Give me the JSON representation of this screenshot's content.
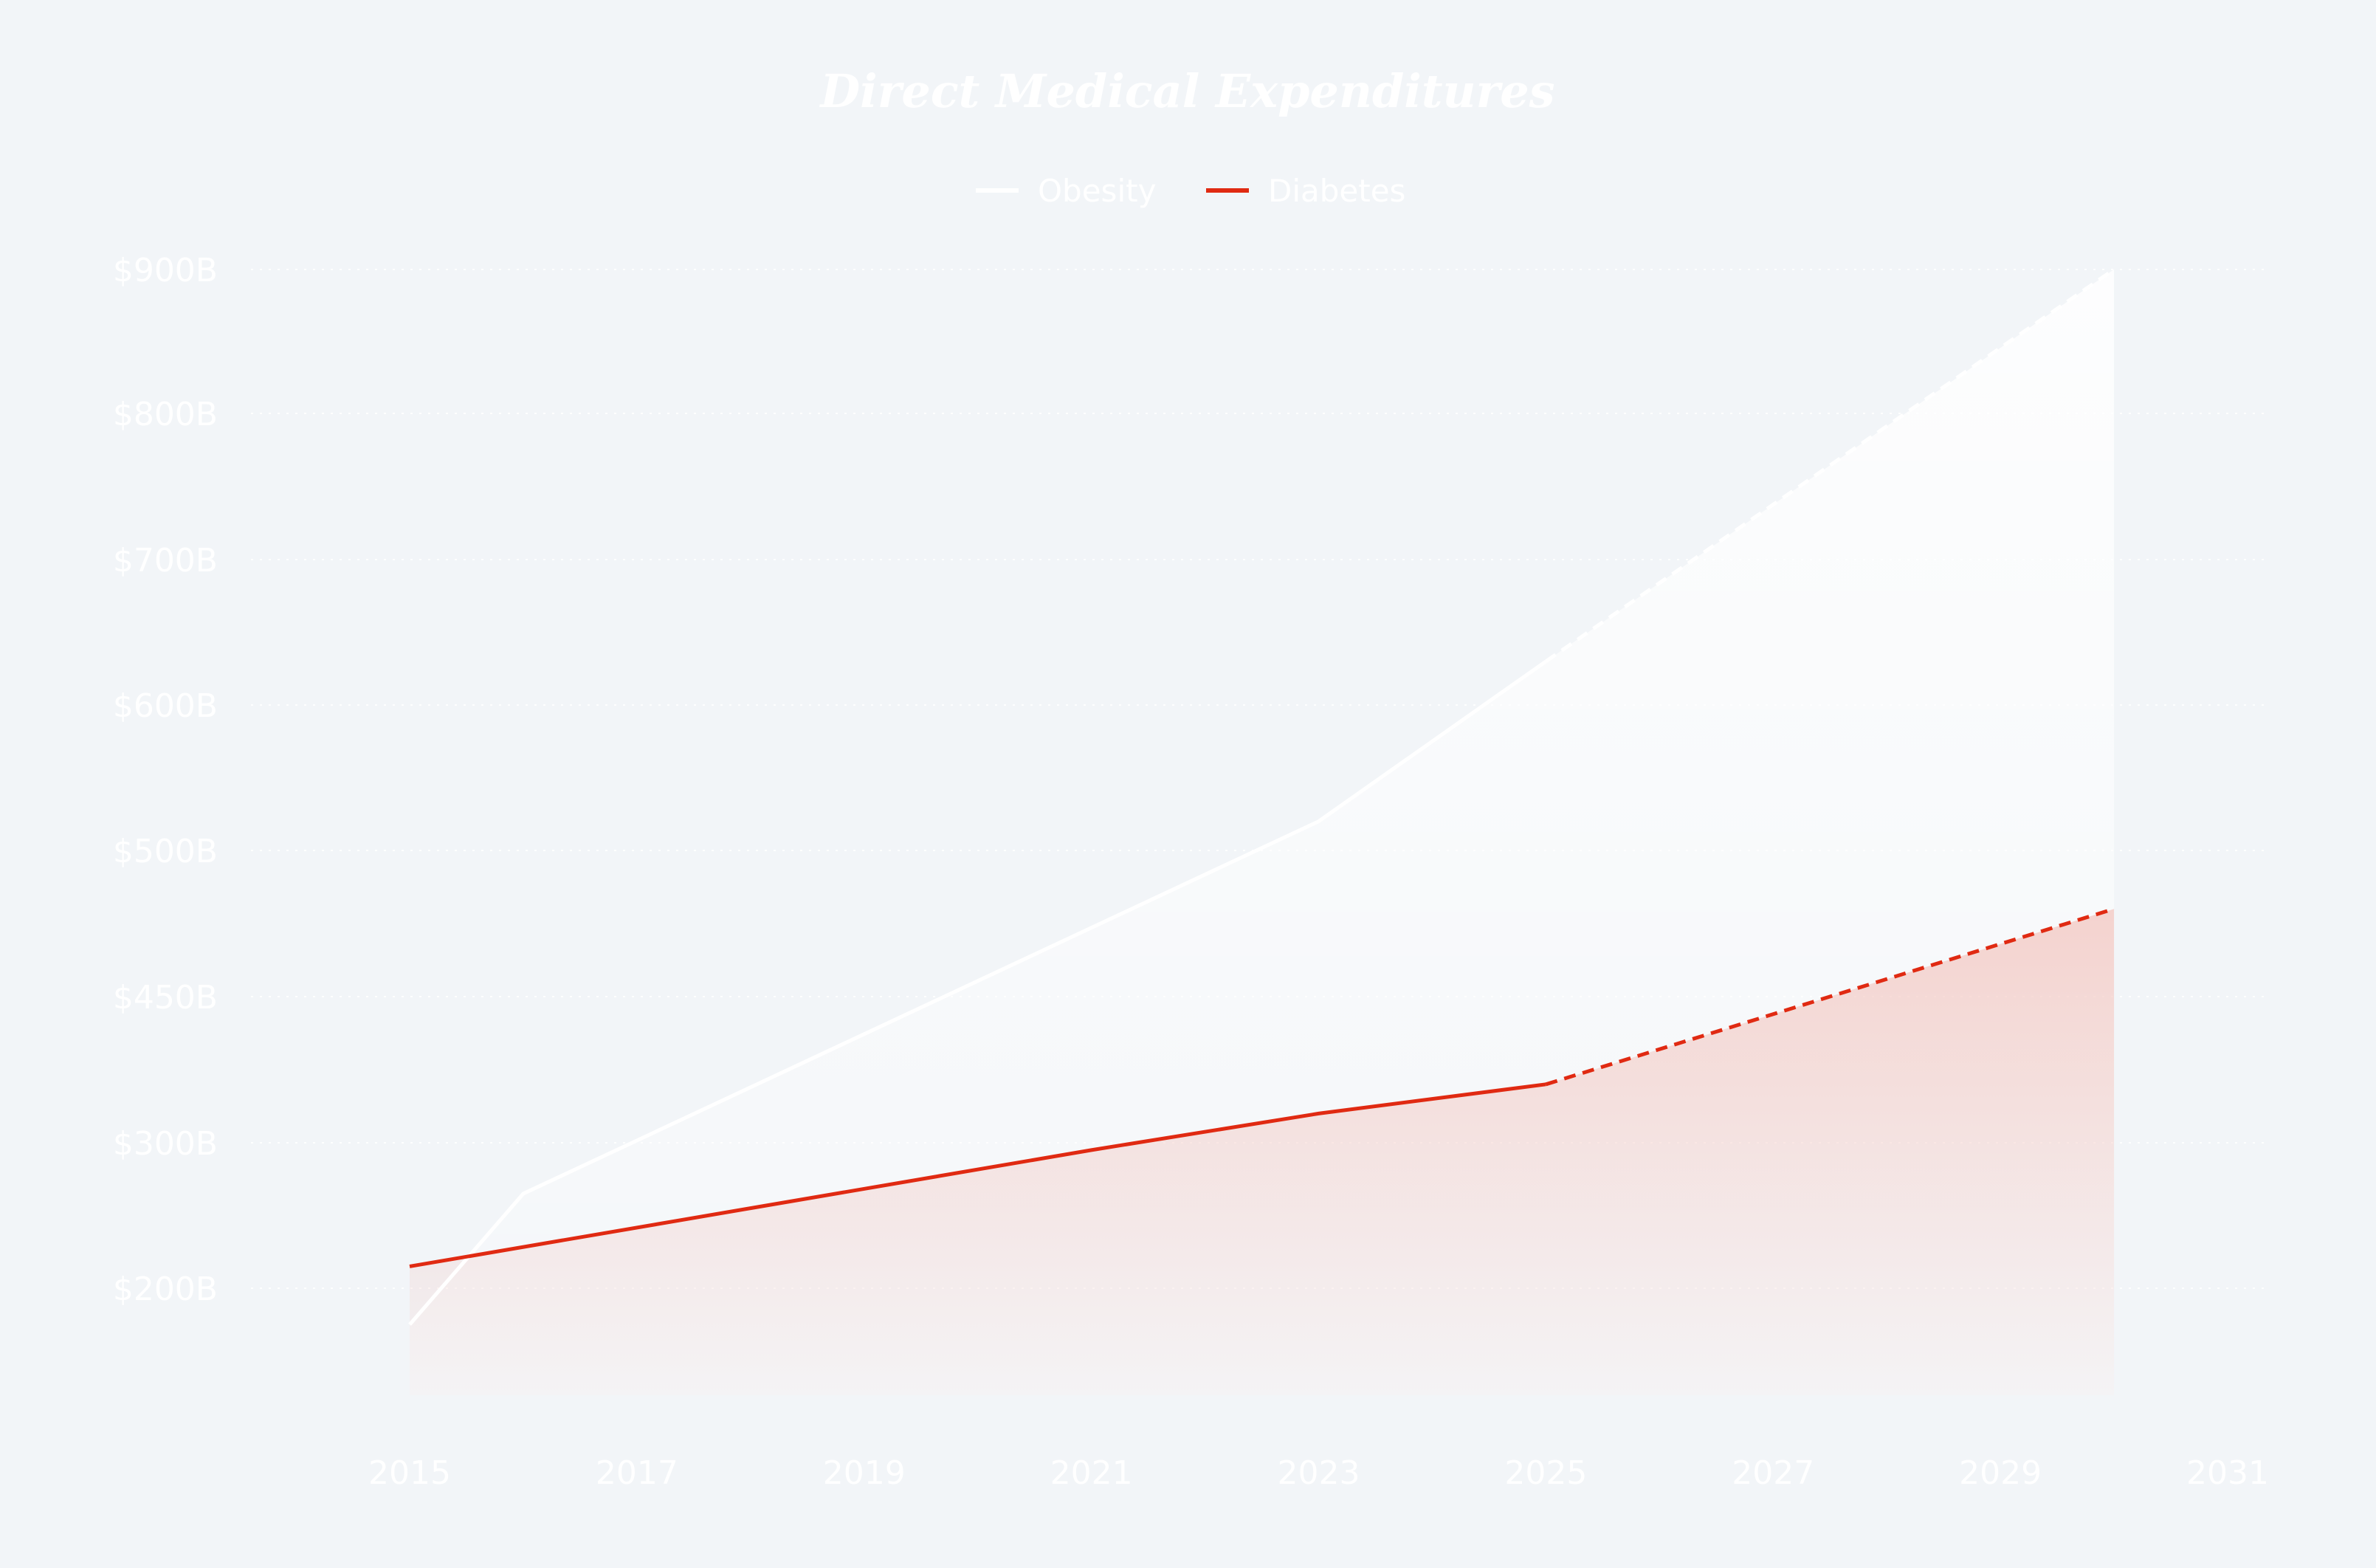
{
  "chart_data": {
    "type": "area",
    "title": "Direct Medical Expenditures",
    "xlabel": "",
    "ylabel": "",
    "legend_position": "top-center",
    "grid": true,
    "x_ticks": [
      "2015",
      "2017",
      "2019",
      "2021",
      "2023",
      "2025",
      "2027",
      "2029",
      "2031"
    ],
    "y_ticks": [
      "$200B",
      "$300B",
      "$450B",
      "$500B",
      "$600B",
      "$700B",
      "$800B",
      "$900B"
    ],
    "y_axis_note": "categorical-style tick spacing: each labeled tick is evenly spaced",
    "x_range": [
      2014,
      2031
    ],
    "projection_start_year": 2025,
    "series": [
      {
        "name": "Obesity",
        "color": "#ffffff",
        "x": [
          2015,
          2016,
          2023,
          2025,
          2030
        ],
        "values": [
          175,
          265,
          520,
          630,
          900
        ]
      },
      {
        "name": "Diabetes",
        "color": "#e02a12",
        "x": [
          2015,
          2018,
          2021,
          2023,
          2025,
          2030
        ],
        "values": [
          215,
          255,
          295,
          330,
          360,
          480
        ]
      }
    ]
  }
}
